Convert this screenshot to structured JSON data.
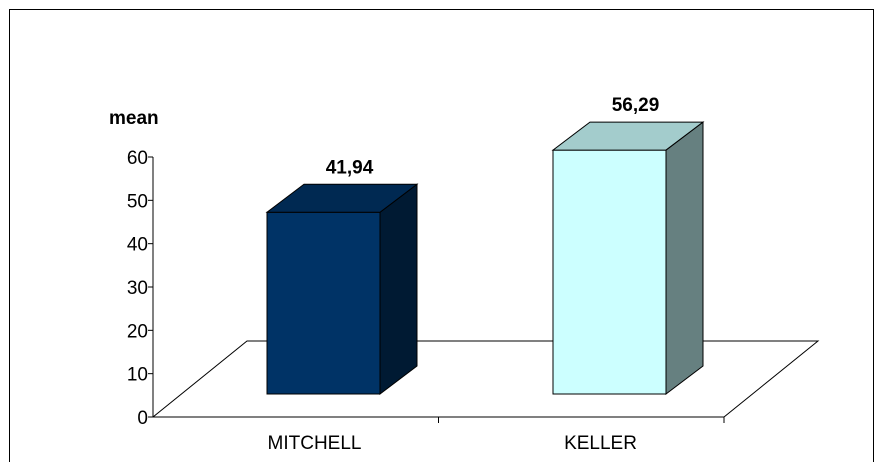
{
  "chart_data": {
    "type": "bar",
    "title": "",
    "xlabel": "",
    "ylabel": "mean",
    "ylim": [
      0,
      60
    ],
    "yticks": [
      0,
      10,
      20,
      30,
      40,
      50,
      60
    ],
    "categories": [
      "MITCHELL",
      "KELLER"
    ],
    "series": [
      {
        "values": [
          41.94,
          56.29
        ],
        "data_labels": [
          "41,94",
          "56,29"
        ],
        "colors": {
          "front": [
            "#003366",
            "#CCFFFF"
          ],
          "side": [
            "#001A33",
            "#668080"
          ],
          "top": [
            "#002952",
            "#A3CCCC"
          ]
        }
      }
    ],
    "grid": false,
    "legend": "none",
    "style": "3d-column"
  }
}
